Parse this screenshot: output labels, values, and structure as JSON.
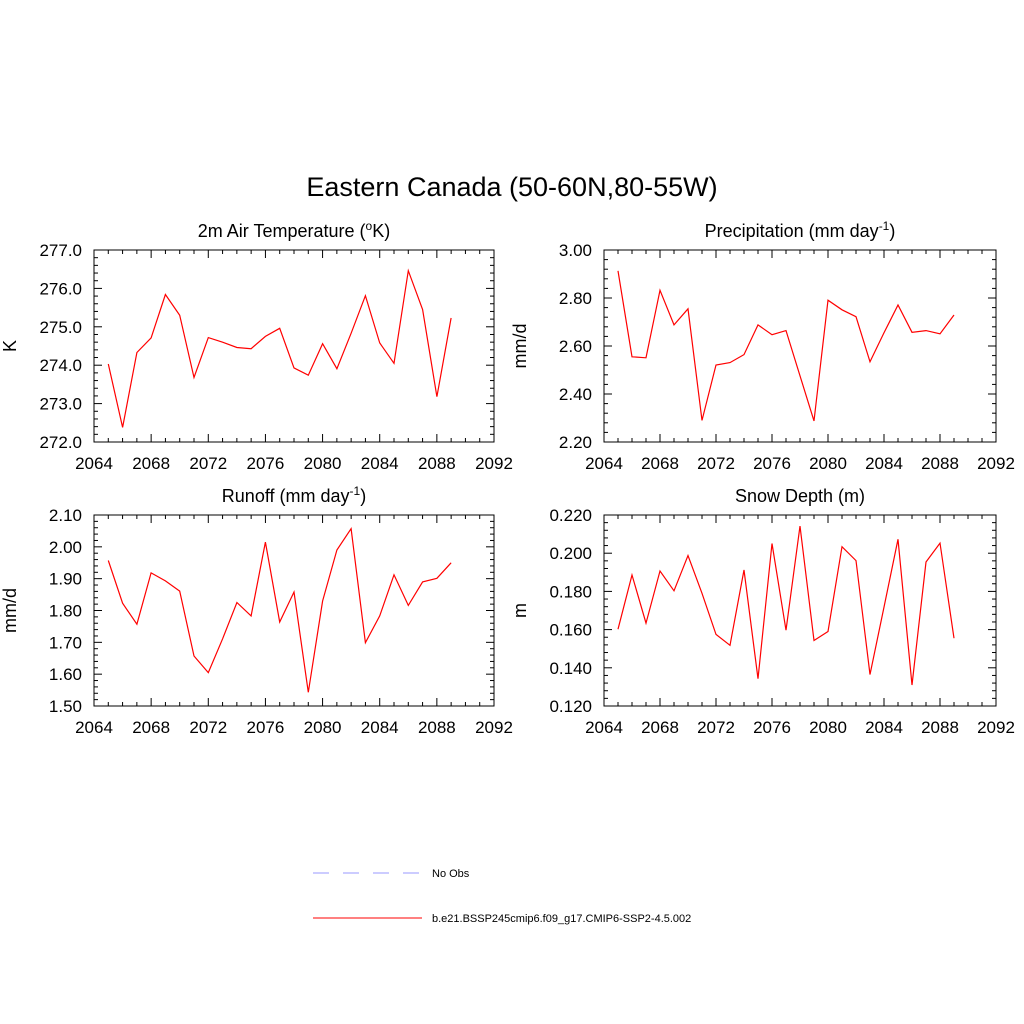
{
  "title": "Eastern Canada (50-60N,80-55W)",
  "chart_data": [
    {
      "type": "line",
      "title": "2m Air Temperature (°K)",
      "title_parts": [
        "2m Air Temperature (",
        "o",
        "K)"
      ],
      "ylabel": "K",
      "xlim": [
        2064,
        2092
      ],
      "ylim": [
        272.0,
        277.0
      ],
      "xticks": [
        2064,
        2068,
        2072,
        2076,
        2080,
        2084,
        2088,
        2092
      ],
      "xtick_labels": [
        "2064",
        "2068",
        "2072",
        "2076",
        "2080",
        "2084",
        "2088",
        "2092"
      ],
      "yticks": [
        272.0,
        273.0,
        274.0,
        275.0,
        276.0,
        277.0
      ],
      "ytick_labels": [
        "272.0",
        "273.0",
        "274.0",
        "275.0",
        "276.0",
        "277.0"
      ],
      "x": [
        2065,
        2066,
        2067,
        2068,
        2069,
        2070,
        2071,
        2072,
        2073,
        2074,
        2075,
        2076,
        2077,
        2078,
        2079,
        2080,
        2081,
        2082,
        2083,
        2084,
        2085,
        2086,
        2087,
        2088,
        2089
      ],
      "series": [
        {
          "name": "b.e21.BSSP245cmip6.f09_g17.CMIP6-SSP2-4.5.002",
          "color": "#ff0000",
          "values": [
            274.03,
            272.38,
            274.33,
            274.71,
            275.84,
            275.3,
            273.68,
            274.72,
            274.6,
            274.46,
            274.43,
            274.75,
            274.96,
            273.93,
            273.74,
            274.56,
            273.91,
            274.83,
            275.81,
            274.58,
            274.05,
            276.46,
            275.45,
            273.18,
            275.23
          ]
        }
      ]
    },
    {
      "type": "line",
      "title": "Precipitation (mm day-1)",
      "title_parts": [
        "Precipitation (mm day",
        "-1",
        ")"
      ],
      "ylabel": "mm/d",
      "xlim": [
        2064,
        2092
      ],
      "ylim": [
        2.2,
        3.0
      ],
      "xticks": [
        2064,
        2068,
        2072,
        2076,
        2080,
        2084,
        2088,
        2092
      ],
      "xtick_labels": [
        "2064",
        "2068",
        "2072",
        "2076",
        "2080",
        "2084",
        "2088",
        "2092"
      ],
      "yticks": [
        2.2,
        2.4,
        2.6,
        2.8,
        3.0
      ],
      "ytick_labels": [
        "2.20",
        "2.40",
        "2.60",
        "2.80",
        "3.00"
      ],
      "x": [
        2065,
        2066,
        2067,
        2068,
        2069,
        2070,
        2071,
        2072,
        2073,
        2074,
        2075,
        2076,
        2077,
        2078,
        2079,
        2080,
        2081,
        2082,
        2083,
        2084,
        2085,
        2086,
        2087,
        2088,
        2089
      ],
      "series": [
        {
          "name": "b.e21.BSSP245cmip6.f09_g17.CMIP6-SSP2-4.5.002",
          "color": "#ff0000",
          "values": [
            2.913,
            2.555,
            2.551,
            2.832,
            2.688,
            2.755,
            2.29,
            2.521,
            2.531,
            2.564,
            2.688,
            2.647,
            2.664,
            2.476,
            2.288,
            2.791,
            2.751,
            2.722,
            2.534,
            2.655,
            2.771,
            2.657,
            2.664,
            2.651,
            2.729
          ]
        }
      ]
    },
    {
      "type": "line",
      "title": "Runoff (mm day-1)",
      "title_parts": [
        "Runoff (mm day",
        "-1",
        ")"
      ],
      "ylabel": "mm/d",
      "xlim": [
        2064,
        2092
      ],
      "ylim": [
        1.5,
        2.1
      ],
      "xticks": [
        2064,
        2068,
        2072,
        2076,
        2080,
        2084,
        2088,
        2092
      ],
      "xtick_labels": [
        "2064",
        "2068",
        "2072",
        "2076",
        "2080",
        "2084",
        "2088",
        "2092"
      ],
      "yticks": [
        1.5,
        1.6,
        1.7,
        1.8,
        1.9,
        2.0,
        2.1
      ],
      "ytick_labels": [
        "1.50",
        "1.60",
        "1.70",
        "1.80",
        "1.90",
        "2.00",
        "2.10"
      ],
      "x": [
        2065,
        2066,
        2067,
        2068,
        2069,
        2070,
        2071,
        2072,
        2073,
        2074,
        2075,
        2076,
        2077,
        2078,
        2079,
        2080,
        2081,
        2082,
        2083,
        2084,
        2085,
        2086,
        2087,
        2088,
        2089
      ],
      "series": [
        {
          "name": "b.e21.BSSP245cmip6.f09_g17.CMIP6-SSP2-4.5.002",
          "color": "#ff0000",
          "values": [
            1.957,
            1.823,
            1.757,
            1.918,
            1.893,
            1.861,
            1.657,
            1.605,
            1.711,
            1.825,
            1.783,
            2.015,
            1.764,
            1.858,
            1.543,
            1.83,
            1.99,
            2.057,
            1.699,
            1.783,
            1.912,
            1.816,
            1.89,
            1.901,
            1.95
          ]
        }
      ]
    },
    {
      "type": "line",
      "title": "Snow Depth (m)",
      "title_parts": [
        "Snow Depth (m)",
        "",
        ""
      ],
      "ylabel": "m",
      "xlim": [
        2064,
        2092
      ],
      "ylim": [
        0.12,
        0.22
      ],
      "xticks": [
        2064,
        2068,
        2072,
        2076,
        2080,
        2084,
        2088,
        2092
      ],
      "xtick_labels": [
        "2064",
        "2068",
        "2072",
        "2076",
        "2080",
        "2084",
        "2088",
        "2092"
      ],
      "yticks": [
        0.12,
        0.14,
        0.16,
        0.18,
        0.2,
        0.22
      ],
      "ytick_labels": [
        "0.120",
        "0.140",
        "0.160",
        "0.180",
        "0.200",
        "0.220"
      ],
      "x": [
        2065,
        2066,
        2067,
        2068,
        2069,
        2070,
        2071,
        2072,
        2073,
        2074,
        2075,
        2076,
        2077,
        2078,
        2079,
        2080,
        2081,
        2082,
        2083,
        2084,
        2085,
        2086,
        2087,
        2088,
        2089
      ],
      "series": [
        {
          "name": "b.e21.BSSP245cmip6.f09_g17.CMIP6-SSP2-4.5.002",
          "color": "#ff0000",
          "values": [
            0.1602,
            0.1886,
            0.1634,
            0.1907,
            0.1803,
            0.1988,
            0.179,
            0.1575,
            0.1518,
            0.1912,
            0.1343,
            0.2051,
            0.1597,
            0.2142,
            0.1543,
            0.159,
            0.2034,
            0.1961,
            0.1365,
            0.1718,
            0.2073,
            0.131,
            0.1954,
            0.2053,
            0.1555
          ]
        }
      ]
    }
  ],
  "legend": {
    "items": [
      {
        "label": "No Obs",
        "color": "#9999ff",
        "dash": true
      },
      {
        "label": "b.e21.BSSP245cmip6.f09_g17.CMIP6-SSP2-4.5.002",
        "color": "#ff0000",
        "dash": false
      }
    ]
  }
}
